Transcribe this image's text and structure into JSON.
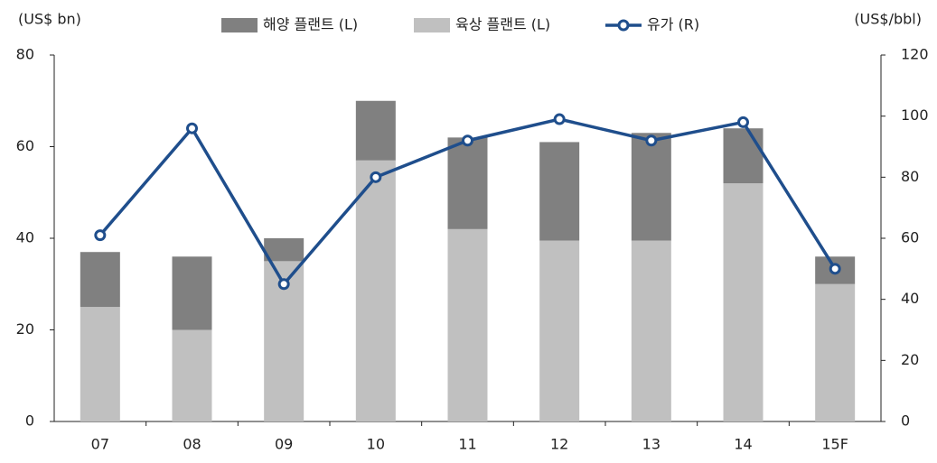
{
  "chart_data": {
    "type": "bar_line",
    "y_label": "(US$ bn)",
    "y2_label": "(US$/bbl)",
    "categories": [
      "07",
      "08",
      "09",
      "10",
      "11",
      "12",
      "13",
      "14",
      "15F"
    ],
    "series": [
      {
        "name": "해양 플랜트 (L)",
        "type": "bar",
        "color": "#808080",
        "values": [
          12,
          16,
          5,
          13,
          20,
          21.5,
          23.5,
          12,
          6
        ]
      },
      {
        "name": "육상 플랜트 (L)",
        "type": "bar",
        "color": "#c0c0c0",
        "values": [
          25,
          20,
          35,
          57,
          42,
          39.5,
          39.5,
          52,
          30
        ]
      },
      {
        "name": "유가 (R)",
        "type": "line",
        "axis": "y2",
        "color": "#1f4e8c",
        "values": [
          61,
          96,
          45,
          80,
          92,
          99,
          92,
          98,
          50
        ]
      }
    ],
    "ylim": [
      0,
      80
    ],
    "yticks": [
      0,
      20,
      40,
      60,
      80
    ],
    "y2lim": [
      0,
      120
    ],
    "y2ticks": [
      0,
      20,
      40,
      60,
      80,
      100,
      120
    ],
    "grid": false
  }
}
